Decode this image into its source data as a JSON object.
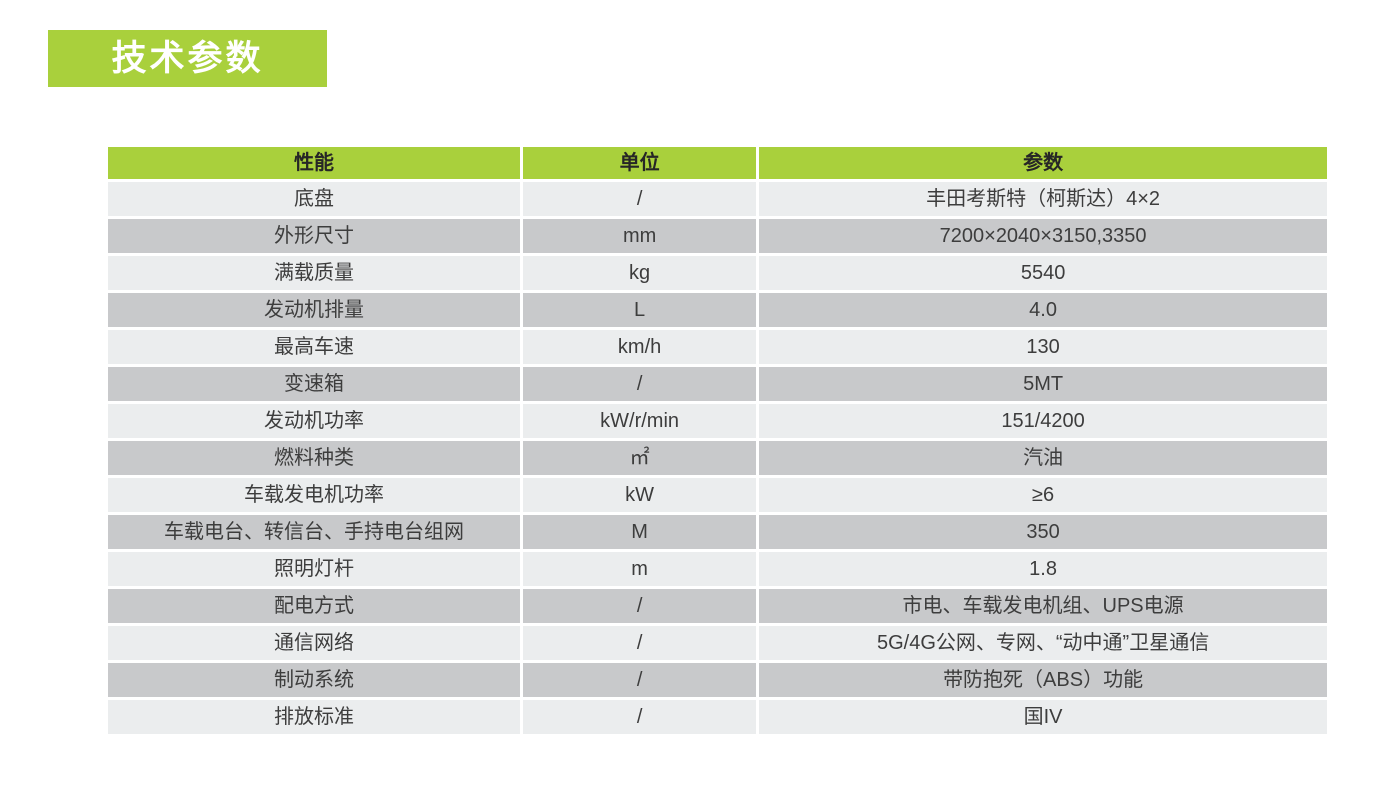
{
  "page_title": "技术参数",
  "colors": {
    "accent_green": "#a9d03c",
    "row_light": "#ebedee",
    "row_dark": "#c8c9cb",
    "header_text": "#262626",
    "body_text": "#3d3d3d",
    "title_text": "#ffffff"
  },
  "table": {
    "headers": [
      "性能",
      "单位",
      "参数"
    ],
    "rows": [
      {
        "name": "底盘",
        "unit": "/",
        "value": "丰田考斯特（柯斯达）4×2"
      },
      {
        "name": "外形尺寸",
        "unit": "mm",
        "value": "7200×2040×3150,3350"
      },
      {
        "name": "满载质量",
        "unit": "kg",
        "value": "5540"
      },
      {
        "name": "发动机排量",
        "unit": "L",
        "value": "4.0"
      },
      {
        "name": "最高车速",
        "unit": "km/h",
        "value": "130"
      },
      {
        "name": "变速箱",
        "unit": "/",
        "value": "5MT"
      },
      {
        "name": "发动机功率",
        "unit": "kW/r/min",
        "value": "151/4200"
      },
      {
        "name": "燃料种类",
        "unit": "㎡",
        "value": "汽油"
      },
      {
        "name": "车载发电机功率",
        "unit": "kW",
        "value": "≥6"
      },
      {
        "name": "车载电台、转信台、手持电台组网",
        "unit": "M",
        "value": "350"
      },
      {
        "name": "照明灯杆",
        "unit": "m",
        "value": "1.8"
      },
      {
        "name": "配电方式",
        "unit": "/",
        "value": "市电、车载发电机组、UPS电源"
      },
      {
        "name": "通信网络",
        "unit": "/",
        "value": "5G/4G公网、专网、“动中通”卫星通信"
      },
      {
        "name": "制动系统",
        "unit": "/",
        "value": "带防抱死（ABS）功能"
      },
      {
        "name": "排放标准",
        "unit": "/",
        "value": "国IV"
      }
    ]
  }
}
